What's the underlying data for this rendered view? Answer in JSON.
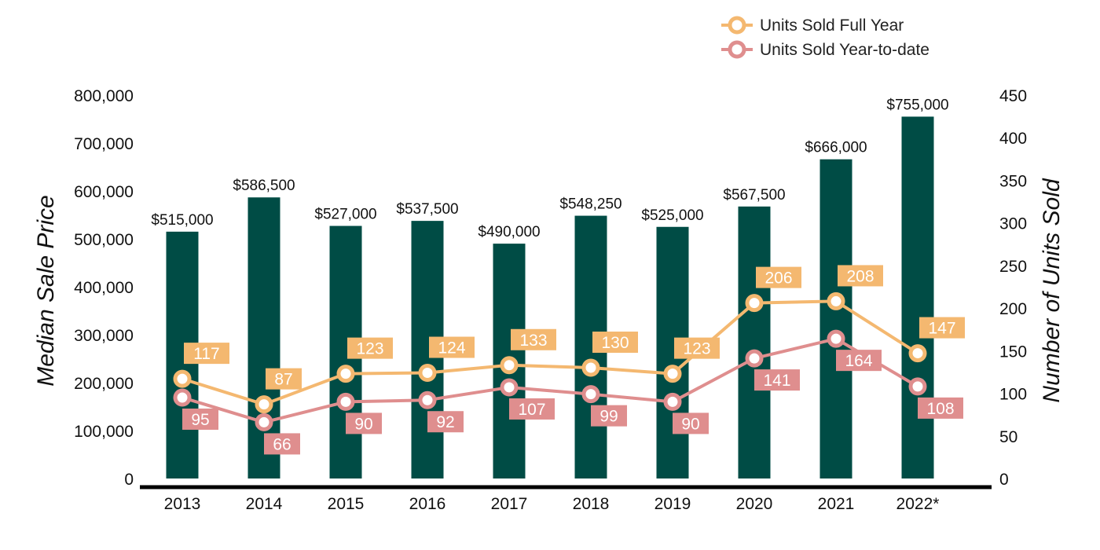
{
  "chart_data": {
    "type": "bar",
    "categories": [
      "2013",
      "2014",
      "2015",
      "2016",
      "2017",
      "2018",
      "2019",
      "2020",
      "2021",
      "2022*"
    ],
    "bars": {
      "values": [
        515000,
        586500,
        527000,
        537500,
        490000,
        548250,
        525000,
        567500,
        666000,
        755000
      ],
      "labels": [
        "$515,000",
        "$586,500",
        "$527,000",
        "$537,500",
        "$490,000",
        "$548,250",
        "$525,000",
        "$567,500",
        "$666,000",
        "$755,000"
      ],
      "color": "#004c45"
    },
    "series": [
      {
        "name": "Units Sold Full Year",
        "type": "line",
        "axis": "right",
        "values": [
          117,
          87,
          123,
          124,
          133,
          130,
          123,
          206,
          208,
          147
        ],
        "color": "#f4b870"
      },
      {
        "name": "Units Sold Year-to-date",
        "type": "line",
        "axis": "right",
        "values": [
          95,
          66,
          90,
          92,
          107,
          99,
          90,
          141,
          164,
          108
        ],
        "color": "#df8e8e"
      }
    ],
    "ylabel": "Median Sale Price",
    "y2label": "Number of Units Sold",
    "ylim": [
      0,
      800000
    ],
    "y2lim": [
      0,
      450
    ],
    "yticks": [
      "0",
      "100,000",
      "200,000",
      "300,000",
      "400,000",
      "500,000",
      "600,000",
      "700,000",
      "800,000"
    ],
    "y2ticks": [
      "0",
      "50",
      "100",
      "150",
      "200",
      "250",
      "300",
      "350",
      "400",
      "450"
    ],
    "grid": false,
    "legend_position": "top-right"
  }
}
